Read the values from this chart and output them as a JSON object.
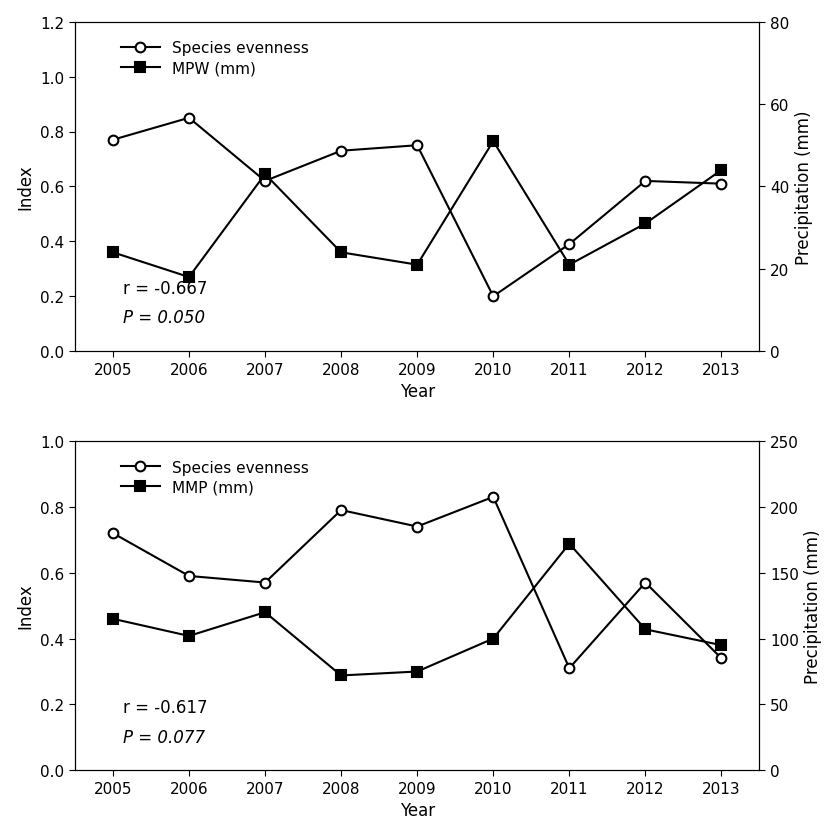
{
  "years": [
    2005,
    2006,
    2007,
    2008,
    2009,
    2010,
    2011,
    2012,
    2013
  ],
  "top": {
    "species_evenness": [
      0.77,
      0.85,
      0.62,
      0.73,
      0.75,
      0.2,
      0.39,
      0.62,
      0.61
    ],
    "mpw_mm": [
      24,
      18,
      43,
      24,
      21,
      51,
      21,
      31,
      44
    ],
    "ylim_left": [
      0.0,
      1.2
    ],
    "ylim_right": [
      0,
      80
    ],
    "yticks_left": [
      0.0,
      0.2,
      0.4,
      0.6,
      0.8,
      1.0,
      1.2
    ],
    "yticks_right": [
      0,
      20,
      40,
      60,
      80
    ],
    "ylabel_left": "Index",
    "ylabel_right": "Precipitation (mm)",
    "legend1": "Species evenness",
    "legend2": "MPW (mm)",
    "r_text": "r = -0.667",
    "p_text": "P = 0.050",
    "xlabel": "Year"
  },
  "bottom": {
    "species_evenness": [
      0.72,
      0.59,
      0.57,
      0.79,
      0.74,
      0.83,
      0.31,
      0.57,
      0.34
    ],
    "mmp_mm": [
      115,
      102,
      120,
      72,
      75,
      100,
      172,
      107,
      95
    ],
    "ylim_left": [
      0.0,
      1.0
    ],
    "ylim_right": [
      0,
      250
    ],
    "yticks_left": [
      0.0,
      0.2,
      0.4,
      0.6,
      0.8,
      1.0
    ],
    "yticks_right": [
      0,
      50,
      100,
      150,
      200,
      250
    ],
    "ylabel_left": "Index",
    "ylabel_right": "Precipitation (mm)",
    "legend1": "Species evenness",
    "legend2": "MMP (mm)",
    "r_text": "r = -0.617",
    "p_text": "P = 0.077",
    "xlabel": "Year"
  },
  "line_color": "black",
  "marker_open": "o",
  "marker_filled": "s",
  "markersize": 7,
  "linewidth": 1.5,
  "background_color": "white",
  "annotation_fontsize": 12,
  "label_fontsize": 12,
  "tick_fontsize": 11,
  "legend_fontsize": 11
}
